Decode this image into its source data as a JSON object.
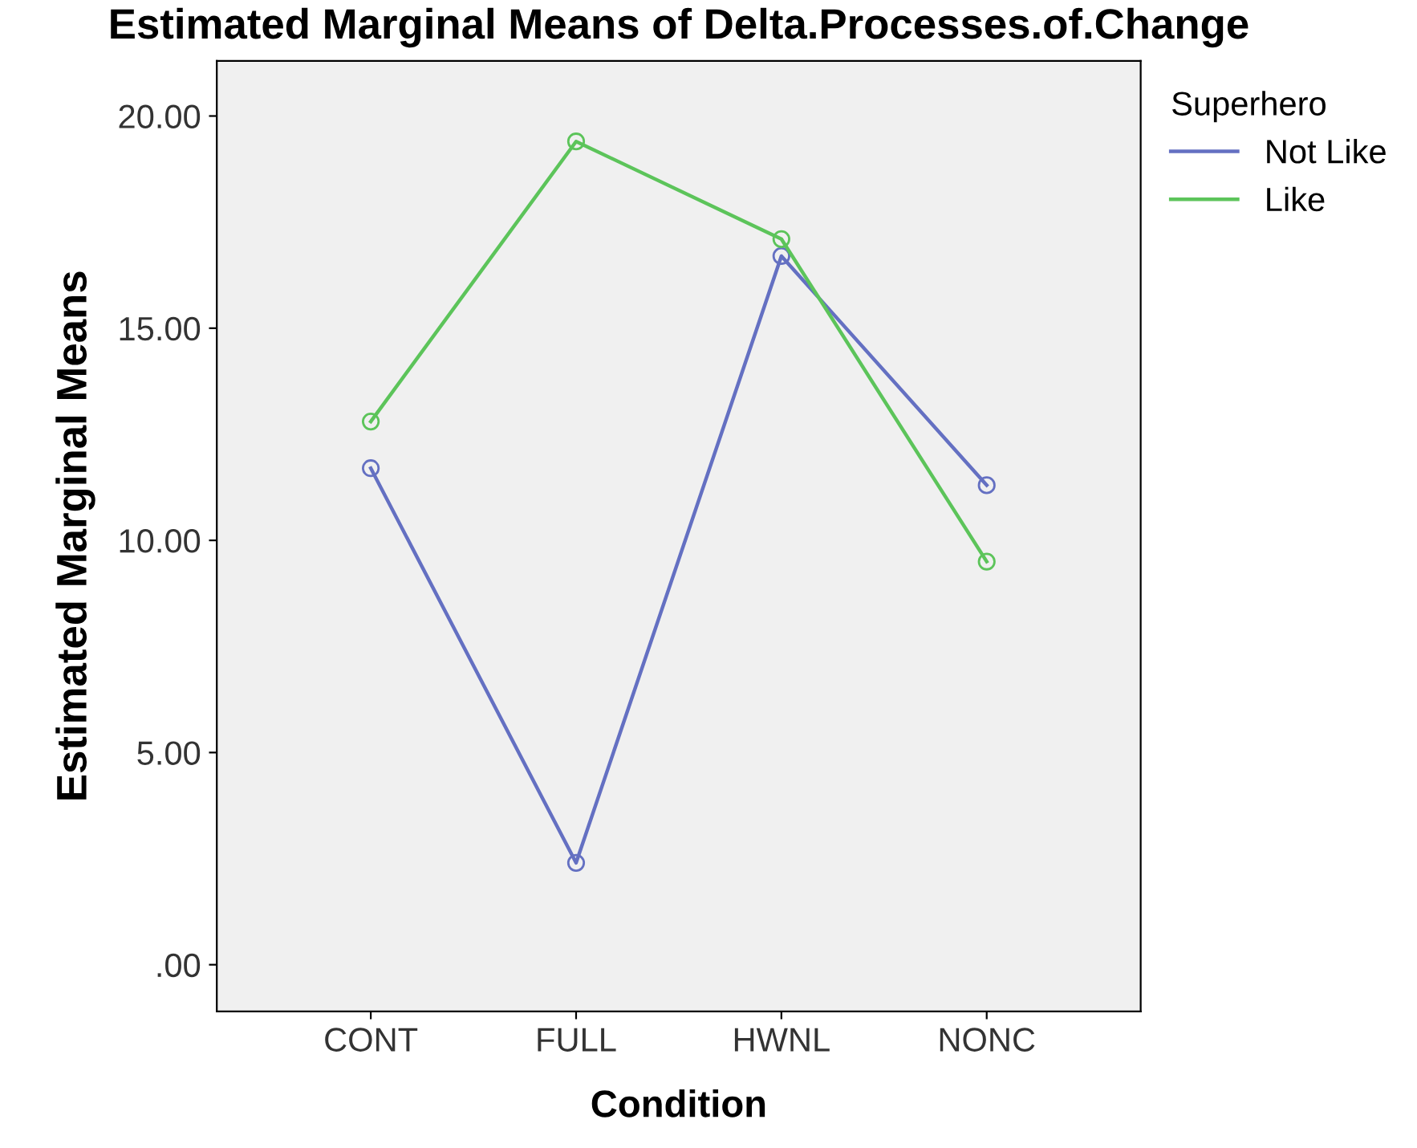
{
  "chart_data": {
    "type": "line",
    "title": "Estimated Marginal Means of Delta.Processes.of.Change",
    "xlabel": "Condition",
    "ylabel": "Estimated Marginal Means",
    "legend_title": "Superhero",
    "categories": [
      "CONT",
      "FULL",
      "HWNL",
      "NONC"
    ],
    "series": [
      {
        "name": "Not Like",
        "color": "#6470c2",
        "values": [
          11.7,
          2.4,
          16.7,
          11.3
        ]
      },
      {
        "name": "Like",
        "color": "#5cc45a",
        "values": [
          12.8,
          19.4,
          17.1,
          9.5
        ]
      }
    ],
    "ylim": [
      -1.1,
      21.3
    ],
    "yticks": [
      {
        "value": 0,
        "label": ".00"
      },
      {
        "value": 5,
        "label": "5.00"
      },
      {
        "value": 10,
        "label": "10.00"
      },
      {
        "value": 15,
        "label": "15.00"
      },
      {
        "value": 20,
        "label": "20.00"
      }
    ],
    "marker": "circle",
    "legend": "top right",
    "grid": false
  }
}
